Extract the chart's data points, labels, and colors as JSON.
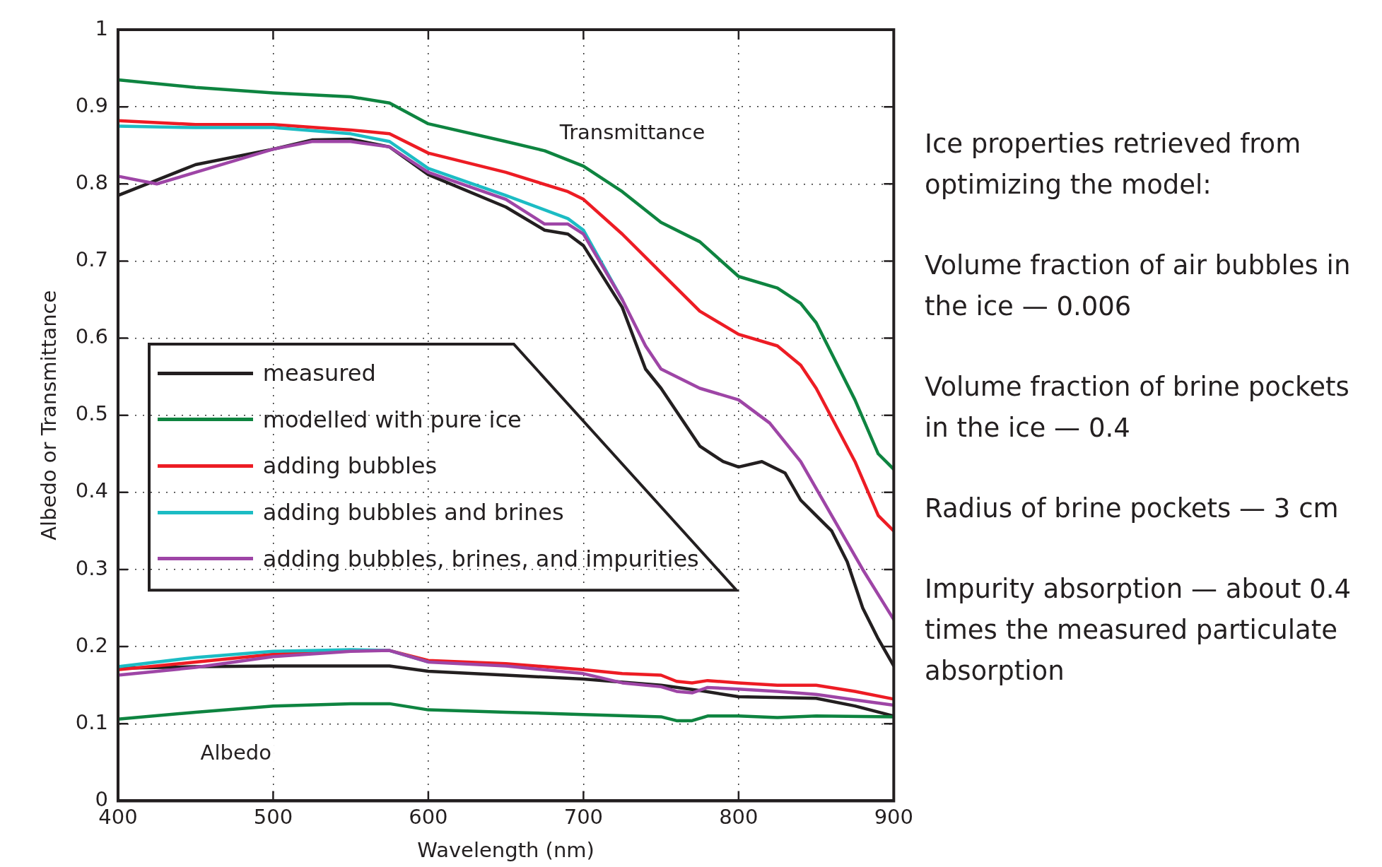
{
  "chart_data": {
    "type": "line",
    "xlabel": "Wavelength (nm)",
    "ylabel": "Albedo or Transmittance",
    "xlim": [
      400,
      900
    ],
    "xticks": [
      400,
      500,
      600,
      700,
      800,
      900
    ],
    "ylim": [
      0,
      1
    ],
    "yticks": [
      0,
      0.1,
      0.2,
      0.3,
      0.4,
      0.5,
      0.6,
      0.7,
      0.8,
      0.9,
      1
    ],
    "grid": true,
    "legend": "left",
    "line_style": "solid",
    "marker": "none",
    "series": [
      {
        "name": "measured",
        "color": "#231f20",
        "x": [
          400,
          425,
          450,
          500,
          525,
          550,
          575,
          600,
          650,
          675,
          690,
          700,
          725,
          740,
          750,
          775,
          790,
          800,
          815,
          830,
          840,
          850,
          860,
          870,
          880,
          890,
          900
        ],
        "values": [
          0.785,
          0.805,
          0.825,
          0.845,
          0.857,
          0.858,
          0.848,
          0.812,
          0.77,
          0.74,
          0.735,
          0.72,
          0.64,
          0.56,
          0.535,
          0.46,
          0.44,
          0.433,
          0.44,
          0.425,
          0.39,
          0.37,
          0.35,
          0.31,
          0.25,
          0.21,
          0.175
        ]
      },
      {
        "name": "modelled with pure ice",
        "color": "#0e8440",
        "x": [
          400,
          450,
          500,
          550,
          575,
          600,
          650,
          675,
          700,
          725,
          750,
          775,
          800,
          825,
          840,
          850,
          875,
          890,
          900
        ],
        "values": [
          0.935,
          0.925,
          0.918,
          0.913,
          0.905,
          0.878,
          0.855,
          0.843,
          0.823,
          0.79,
          0.75,
          0.725,
          0.68,
          0.665,
          0.645,
          0.62,
          0.52,
          0.45,
          0.43
        ]
      },
      {
        "name": "adding bubbles",
        "color": "#ed1c24",
        "x": [
          400,
          450,
          500,
          550,
          575,
          600,
          650,
          690,
          700,
          725,
          750,
          775,
          800,
          825,
          840,
          850,
          875,
          890,
          900
        ],
        "values": [
          0.882,
          0.877,
          0.877,
          0.87,
          0.865,
          0.84,
          0.815,
          0.79,
          0.78,
          0.735,
          0.685,
          0.635,
          0.605,
          0.59,
          0.565,
          0.535,
          0.44,
          0.37,
          0.35
        ]
      },
      {
        "name": "adding bubbles and brines",
        "color": "#1cbcc4",
        "x": [
          400,
          450,
          500,
          550,
          575,
          600,
          650,
          690,
          700,
          725
        ],
        "values": [
          0.875,
          0.873,
          0.873,
          0.865,
          0.855,
          0.82,
          0.785,
          0.755,
          0.74,
          0.65
        ]
      },
      {
        "name": "adding bubbles, brines, and impurities",
        "color": "#9e45a6",
        "x": [
          400,
          425,
          450,
          500,
          525,
          550,
          575,
          600,
          650,
          675,
          690,
          700,
          725,
          740,
          750,
          775,
          800,
          820,
          840,
          860,
          880,
          900
        ],
        "values": [
          0.81,
          0.8,
          0.815,
          0.845,
          0.855,
          0.855,
          0.848,
          0.815,
          0.78,
          0.748,
          0.748,
          0.735,
          0.65,
          0.59,
          0.56,
          0.535,
          0.52,
          0.49,
          0.44,
          0.37,
          0.3,
          0.235
        ]
      },
      {
        "color": "#231f20",
        "x": [
          400,
          450,
          500,
          550,
          575,
          600,
          650,
          700,
          750,
          775,
          800,
          850,
          875,
          900
        ],
        "values": [
          0.172,
          0.174,
          0.175,
          0.175,
          0.175,
          0.168,
          0.163,
          0.158,
          0.15,
          0.143,
          0.135,
          0.133,
          0.123,
          0.11
        ]
      },
      {
        "color": "#0e8440",
        "x": [
          400,
          450,
          500,
          550,
          575,
          600,
          650,
          700,
          750,
          760,
          770,
          780,
          800,
          825,
          850,
          900
        ],
        "values": [
          0.106,
          0.115,
          0.123,
          0.126,
          0.126,
          0.118,
          0.115,
          0.112,
          0.109,
          0.104,
          0.104,
          0.11,
          0.11,
          0.108,
          0.11,
          0.109
        ]
      },
      {
        "color": "#ed1c24",
        "x": [
          400,
          450,
          500,
          550,
          575,
          600,
          650,
          700,
          725,
          750,
          760,
          770,
          780,
          800,
          825,
          850,
          875,
          900
        ],
        "values": [
          0.17,
          0.18,
          0.19,
          0.195,
          0.195,
          0.182,
          0.178,
          0.17,
          0.165,
          0.163,
          0.155,
          0.153,
          0.156,
          0.153,
          0.15,
          0.15,
          0.142,
          0.132
        ]
      },
      {
        "color": "#1cbcc4",
        "x": [
          400,
          450,
          500,
          550,
          575,
          600
        ],
        "values": [
          0.174,
          0.186,
          0.194,
          0.196,
          0.195,
          0.18
        ]
      },
      {
        "color": "#9e45a6",
        "x": [
          400,
          450,
          500,
          550,
          575,
          600,
          650,
          700,
          725,
          750,
          760,
          770,
          780,
          800,
          825,
          850,
          875,
          900
        ],
        "values": [
          0.163,
          0.173,
          0.187,
          0.194,
          0.195,
          0.18,
          0.175,
          0.165,
          0.153,
          0.148,
          0.142,
          0.14,
          0.147,
          0.145,
          0.142,
          0.138,
          0.131,
          0.124
        ]
      }
    ],
    "annotations": [
      "Transmittance",
      "Albedo",
      "Ice properties retrieved from optimizing the model:",
      "Volume fraction of air bubbles in the ice — 0.006",
      "Volume fraction of brine pockets in the ice — 0.4",
      "Radius of brine pockets — 3 cm",
      "Impurity absorption — about 0.4 times the measured particulate absorption"
    ]
  }
}
